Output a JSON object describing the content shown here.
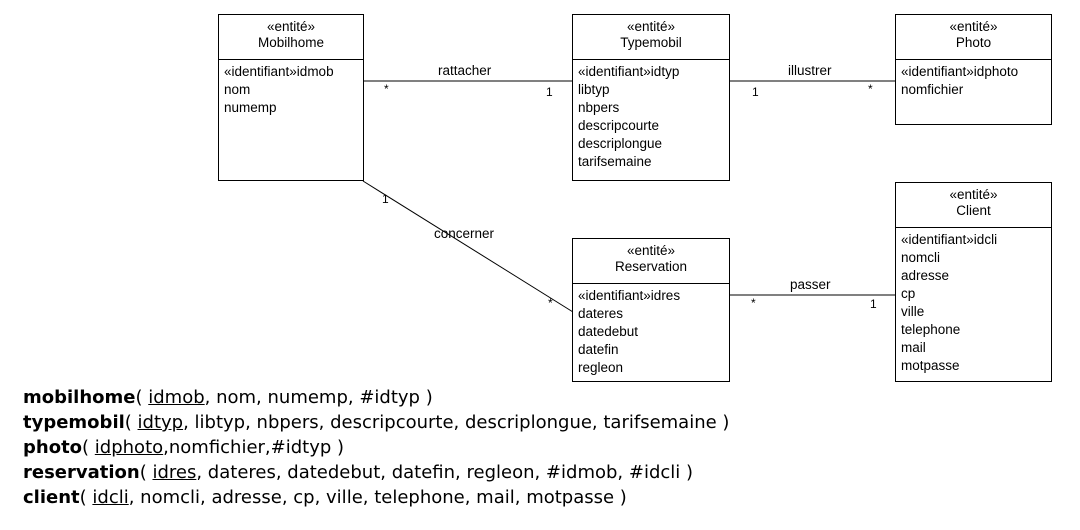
{
  "entities": {
    "mobilhome": {
      "stereotype": "«entité»",
      "name": "Mobilhome",
      "attributes": [
        "«identifiant»idmob",
        "nom",
        "numemp"
      ]
    },
    "typemobil": {
      "stereotype": "«entité»",
      "name": "Typemobil",
      "attributes": [
        "«identifiant»idtyp",
        "libtyp",
        "nbpers",
        "descripcourte",
        "descriplongue",
        "tarifsemaine"
      ]
    },
    "photo": {
      "stereotype": "«entité»",
      "name": "Photo",
      "attributes": [
        "«identifiant»idphoto",
        "nomfichier"
      ]
    },
    "reservation": {
      "stereotype": "«entité»",
      "name": "Reservation",
      "attributes": [
        "«identifiant»idres",
        "dateres",
        "datedebut",
        "datefin",
        "regleon"
      ]
    },
    "client": {
      "stereotype": "«entité»",
      "name": "Client",
      "attributes": [
        "«identifiant»idcli",
        "nomcli",
        "adresse",
        "cp",
        "ville",
        "telephone",
        "mail",
        "motpasse"
      ]
    }
  },
  "associations": {
    "rattacher": {
      "label": "rattacher",
      "mult_a": "*",
      "mult_b": "1"
    },
    "illustrer": {
      "label": "illustrer",
      "mult_a": "1",
      "mult_b": "*"
    },
    "concerner": {
      "label": "concerner",
      "mult_a": "1",
      "mult_b": "*"
    },
    "passer": {
      "label": "passer",
      "mult_a": "*",
      "mult_b": "1"
    }
  },
  "schema": {
    "mobilhome": {
      "name": "mobilhome",
      "open": "( ",
      "key": "idmob",
      "rest": ", nom, numemp, #idtyp )"
    },
    "typemobil": {
      "name": "typemobil",
      "open": "( ",
      "key": "idtyp",
      "rest": ", libtyp, nbpers, descripcourte, descriplongue, tarifsemaine )"
    },
    "photo": {
      "name": "photo",
      "open": "( ",
      "key": "idphoto",
      "rest": ",nomfichier,#idtyp )"
    },
    "reservation": {
      "name": "reservation",
      "open": "( ",
      "key": "idres",
      "rest": ", dateres, datedebut, datefin, regleon, #idmob, #idcli )"
    },
    "client": {
      "name": "client",
      "open": "( ",
      "key": "idcli",
      "rest": ", nomcli, adresse, cp, ville, telephone, mail, motpasse )"
    }
  }
}
